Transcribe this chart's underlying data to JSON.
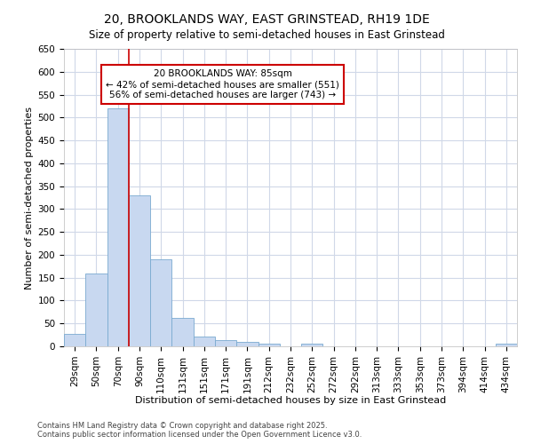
{
  "title": "20, BROOKLANDS WAY, EAST GRINSTEAD, RH19 1DE",
  "subtitle": "Size of property relative to semi-detached houses in East Grinstead",
  "xlabel": "Distribution of semi-detached houses by size in East Grinstead",
  "ylabel": "Number of semi-detached properties",
  "categories": [
    "29sqm",
    "50sqm",
    "70sqm",
    "90sqm",
    "110sqm",
    "131sqm",
    "151sqm",
    "171sqm",
    "191sqm",
    "212sqm",
    "232sqm",
    "252sqm",
    "272sqm",
    "292sqm",
    "313sqm",
    "333sqm",
    "353sqm",
    "373sqm",
    "394sqm",
    "414sqm",
    "434sqm"
  ],
  "values": [
    28,
    160,
    520,
    330,
    190,
    63,
    22,
    13,
    10,
    5,
    0,
    5,
    0,
    0,
    0,
    0,
    0,
    0,
    0,
    0,
    5
  ],
  "bar_color": "#c8d8f0",
  "bar_edge_color": "#7aaad0",
  "property_value": 85,
  "property_label": "20 BROOKLANDS WAY: 85sqm",
  "pct_smaller": 42,
  "n_smaller": 551,
  "pct_larger": 56,
  "n_larger": 743,
  "vline_color": "#cc0000",
  "vline_x_index": 3,
  "annotation_box_color": "#cc0000",
  "ylim": [
    0,
    650
  ],
  "yticks": [
    0,
    50,
    100,
    150,
    200,
    250,
    300,
    350,
    400,
    450,
    500,
    550,
    600,
    650
  ],
  "footnote1": "Contains HM Land Registry data © Crown copyright and database right 2025.",
  "footnote2": "Contains public sector information licensed under the Open Government Licence v3.0.",
  "background_color": "#ffffff",
  "grid_color": "#d0d8e8",
  "title_fontsize": 10,
  "subtitle_fontsize": 8.5,
  "axis_label_fontsize": 8,
  "tick_fontsize": 7.5,
  "footnote_fontsize": 6
}
